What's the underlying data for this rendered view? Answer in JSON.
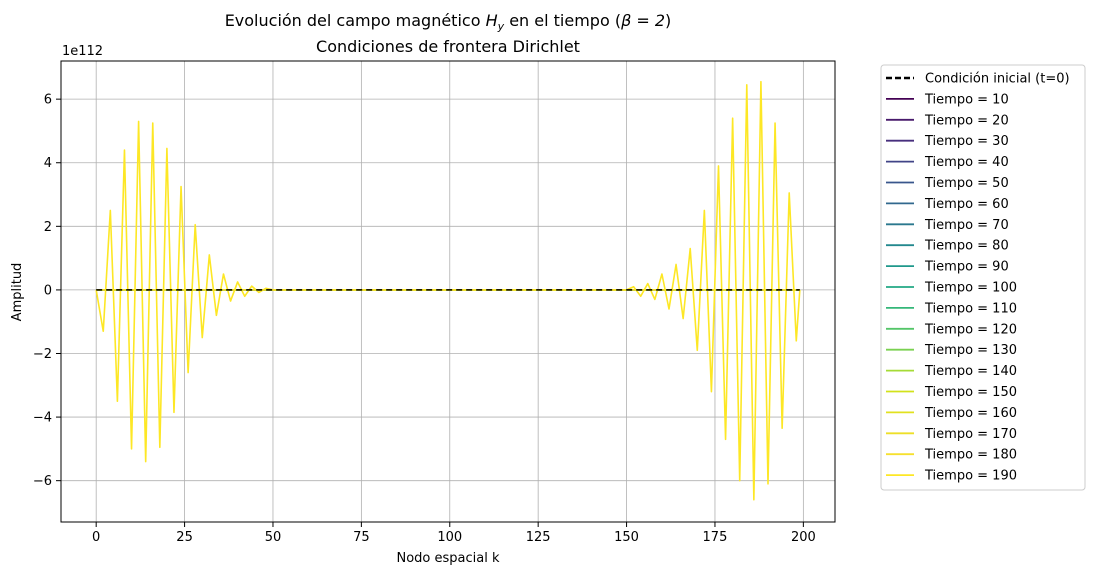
{
  "chart_data": {
    "type": "line",
    "title_prefix": "Evolución del campo magnético ",
    "title_var": "H",
    "title_sub": "y",
    "title_middle": " en el tiempo (",
    "title_param": "β = 2",
    "title_suffix": ")",
    "subtitle": "Condiciones de frontera Dirichlet",
    "xlabel": "Nodo espacial k",
    "ylabel": "Amplitud",
    "y_multiplier": "1e112",
    "xlim": [
      -9.95,
      208.95
    ],
    "ylim": [
      -7.3,
      7.2
    ],
    "xticks": [
      0,
      25,
      50,
      75,
      100,
      125,
      150,
      175,
      200
    ],
    "yticks": [
      -6,
      -4,
      -2,
      0,
      2,
      4,
      6
    ],
    "grid": true,
    "legend_position": "outside-right",
    "series": [
      {
        "name": "Condición inicial (t=0)",
        "color": "#000000",
        "dashed": true
      },
      {
        "name": "Tiempo = 10",
        "color": "#440154"
      },
      {
        "name": "Tiempo = 20",
        "color": "#481a6c"
      },
      {
        "name": "Tiempo = 30",
        "color": "#472f7d"
      },
      {
        "name": "Tiempo = 40",
        "color": "#414487"
      },
      {
        "name": "Tiempo = 50",
        "color": "#39568c"
      },
      {
        "name": "Tiempo = 60",
        "color": "#31688e"
      },
      {
        "name": "Tiempo = 70",
        "color": "#2a788e"
      },
      {
        "name": "Tiempo = 80",
        "color": "#23888e"
      },
      {
        "name": "Tiempo = 90",
        "color": "#1f988b"
      },
      {
        "name": "Tiempo = 100",
        "color": "#22a884"
      },
      {
        "name": "Tiempo = 110",
        "color": "#35b779"
      },
      {
        "name": "Tiempo = 120",
        "color": "#54c568"
      },
      {
        "name": "Tiempo = 130",
        "color": "#7ad151"
      },
      {
        "name": "Tiempo = 140",
        "color": "#a5db36"
      },
      {
        "name": "Tiempo = 150",
        "color": "#d2e21b"
      },
      {
        "name": "Tiempo = 160",
        "color": "#e1e11f"
      },
      {
        "name": "Tiempo = 170",
        "color": "#eddf28"
      },
      {
        "name": "Tiempo = 180",
        "color": "#f6e02e"
      },
      {
        "name": "Tiempo = 190",
        "color": "#fde725"
      }
    ],
    "final_series_x": [
      0,
      2,
      4,
      6,
      8,
      10,
      12,
      14,
      16,
      18,
      20,
      22,
      24,
      26,
      28,
      30,
      32,
      34,
      36,
      38,
      40,
      42,
      44,
      46,
      48,
      50,
      150,
      152,
      154,
      156,
      158,
      160,
      162,
      164,
      166,
      168,
      170,
      172,
      174,
      176,
      178,
      180,
      182,
      184,
      186,
      188,
      190,
      192,
      194,
      196,
      198,
      199
    ],
    "final_series_y": [
      0,
      -1.3,
      2.5,
      -3.5,
      4.4,
      -5.0,
      5.3,
      -5.4,
      5.25,
      -4.95,
      4.45,
      -3.85,
      3.25,
      -2.6,
      2.05,
      -1.5,
      1.1,
      -0.8,
      0.5,
      -0.35,
      0.25,
      -0.2,
      0.12,
      -0.08,
      0.05,
      0,
      0,
      0.1,
      -0.2,
      0.2,
      -0.3,
      0.5,
      -0.6,
      0.8,
      -0.9,
      1.3,
      -1.9,
      2.5,
      -3.2,
      3.9,
      -4.7,
      5.4,
      -6.0,
      6.45,
      -6.6,
      6.55,
      -6.1,
      5.25,
      -4.35,
      3.05,
      -1.6,
      0
    ]
  }
}
